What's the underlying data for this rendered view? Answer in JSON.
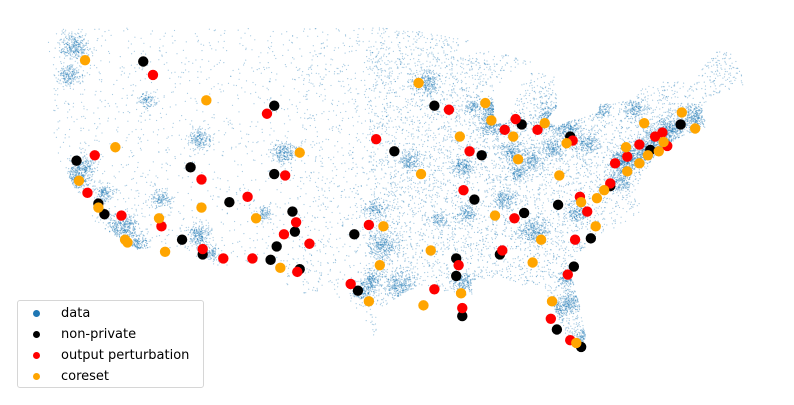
{
  "chart_data": {
    "type": "scatter",
    "title": "",
    "xlabel": "",
    "ylabel": "",
    "axes_visible": false,
    "grid": false,
    "x_quantity": "longitude (approx.)",
    "y_quantity": "latitude (approx.)",
    "xlim": [
      -124.7,
      -66.9
    ],
    "ylim": [
      24.5,
      49.3
    ],
    "legend": {
      "placement": "lower-left",
      "entries": [
        "data",
        "non-private",
        "output perturbation",
        "coreset"
      ]
    },
    "series": [
      {
        "name": "data",
        "color": "#1f77b4",
        "style": "dense small translucent points covering the contiguous US",
        "points": []
      },
      {
        "name": "non-private",
        "color": "#000000",
        "points": [
          [
            -116.6,
            46.5
          ],
          [
            -105.8,
            43.2
          ],
          [
            -122.1,
            39.1
          ],
          [
            -112.7,
            38.6
          ],
          [
            -105.8,
            38.1
          ],
          [
            -120.3,
            35.9
          ],
          [
            -119.8,
            35.1
          ],
          [
            -109.5,
            36.0
          ],
          [
            -104.3,
            35.3
          ],
          [
            -104.1,
            33.8
          ],
          [
            -113.4,
            33.2
          ],
          [
            -105.6,
            32.7
          ],
          [
            -111.7,
            32.1
          ],
          [
            -106.1,
            31.7
          ],
          [
            -103.7,
            31.0
          ],
          [
            -99.2,
            33.6
          ],
          [
            -98.9,
            29.4
          ],
          [
            -95.9,
            39.8
          ],
          [
            -92.6,
            43.2
          ],
          [
            -85.4,
            41.8
          ],
          [
            -88.7,
            39.5
          ],
          [
            -89.3,
            36.2
          ],
          [
            -85.2,
            35.2
          ],
          [
            -90.8,
            31.8
          ],
          [
            -90.8,
            30.5
          ],
          [
            -90.3,
            27.5
          ],
          [
            -87.2,
            32.1
          ],
          [
            -82.4,
            35.8
          ],
          [
            -81.4,
            40.9
          ],
          [
            -78.1,
            37.2
          ],
          [
            -79.7,
            33.3
          ],
          [
            -81.1,
            31.2
          ],
          [
            -82.5,
            26.5
          ],
          [
            -80.5,
            25.2
          ],
          [
            -72.3,
            41.8
          ],
          [
            -74.8,
            39.9
          ]
        ]
      },
      {
        "name": "output perturbation",
        "color": "#ff0000",
        "points": [
          [
            -115.8,
            45.5
          ],
          [
            -106.4,
            42.6
          ],
          [
            -120.6,
            39.5
          ],
          [
            -121.2,
            36.7
          ],
          [
            -118.4,
            35.0
          ],
          [
            -115.1,
            34.2
          ],
          [
            -111.8,
            37.7
          ],
          [
            -108.0,
            36.4
          ],
          [
            -104.9,
            38.0
          ],
          [
            -104.0,
            34.5
          ],
          [
            -105.0,
            33.6
          ],
          [
            -102.9,
            32.9
          ],
          [
            -111.7,
            32.5
          ],
          [
            -110.0,
            31.8
          ],
          [
            -107.6,
            31.8
          ],
          [
            -103.9,
            30.8
          ],
          [
            -97.4,
            40.7
          ],
          [
            -98.0,
            34.3
          ],
          [
            -99.5,
            29.9
          ],
          [
            -91.4,
            42.9
          ],
          [
            -89.7,
            39.8
          ],
          [
            -90.2,
            36.9
          ],
          [
            -85.9,
            42.2
          ],
          [
            -86.8,
            41.4
          ],
          [
            -84.1,
            41.4
          ],
          [
            -81.2,
            40.6
          ],
          [
            -86.0,
            34.8
          ],
          [
            -87.0,
            32.4
          ],
          [
            -90.6,
            31.3
          ],
          [
            -92.6,
            29.5
          ],
          [
            -90.3,
            28.1
          ],
          [
            -80.6,
            36.4
          ],
          [
            -80.0,
            35.3
          ],
          [
            -81.0,
            33.2
          ],
          [
            -81.6,
            30.6
          ],
          [
            -83.0,
            27.3
          ],
          [
            -81.4,
            25.7
          ],
          [
            -77.7,
            38.9
          ],
          [
            -76.7,
            39.4
          ],
          [
            -75.7,
            40.3
          ],
          [
            -74.4,
            40.9
          ],
          [
            -73.8,
            41.2
          ],
          [
            -73.4,
            40.2
          ],
          [
            -78.1,
            37.4
          ]
        ]
      },
      {
        "name": "coreset",
        "color": "#ffa500",
        "points": [
          [
            -121.4,
            46.6
          ],
          [
            -111.4,
            43.6
          ],
          [
            -118.9,
            40.1
          ],
          [
            -121.9,
            37.6
          ],
          [
            -120.3,
            35.6
          ],
          [
            -115.3,
            34.8
          ],
          [
            -114.8,
            32.3
          ],
          [
            -111.8,
            35.6
          ],
          [
            -107.3,
            34.8
          ],
          [
            -105.3,
            31.1
          ],
          [
            -103.7,
            39.7
          ],
          [
            -96.8,
            34.2
          ],
          [
            -97.1,
            31.3
          ],
          [
            -98.0,
            28.6
          ],
          [
            -93.9,
            44.9
          ],
          [
            -93.7,
            38.1
          ],
          [
            -92.9,
            32.4
          ],
          [
            -93.5,
            28.3
          ],
          [
            -90.5,
            40.9
          ],
          [
            -88.4,
            43.4
          ],
          [
            -87.9,
            42.1
          ],
          [
            -86.1,
            40.9
          ],
          [
            -83.5,
            41.9
          ],
          [
            -85.7,
            39.2
          ],
          [
            -81.7,
            40.4
          ],
          [
            -82.3,
            38.0
          ],
          [
            -87.6,
            35.0
          ],
          [
            -83.8,
            33.2
          ],
          [
            -84.5,
            31.5
          ],
          [
            -90.4,
            29.2
          ],
          [
            -82.9,
            28.6
          ],
          [
            -80.9,
            25.5
          ],
          [
            -80.5,
            36.0
          ],
          [
            -79.2,
            36.3
          ],
          [
            -78.6,
            36.9
          ],
          [
            -79.3,
            34.2
          ],
          [
            -76.8,
            40.1
          ],
          [
            -75.7,
            38.9
          ],
          [
            -76.7,
            38.3
          ],
          [
            -75.0,
            39.5
          ],
          [
            -74.1,
            39.8
          ],
          [
            -73.7,
            40.5
          ],
          [
            -75.3,
            41.9
          ],
          [
            -72.2,
            42.7
          ],
          [
            -71.1,
            41.5
          ],
          [
            -118.1,
            33.2
          ],
          [
            -117.9,
            33.0
          ]
        ]
      }
    ]
  }
}
